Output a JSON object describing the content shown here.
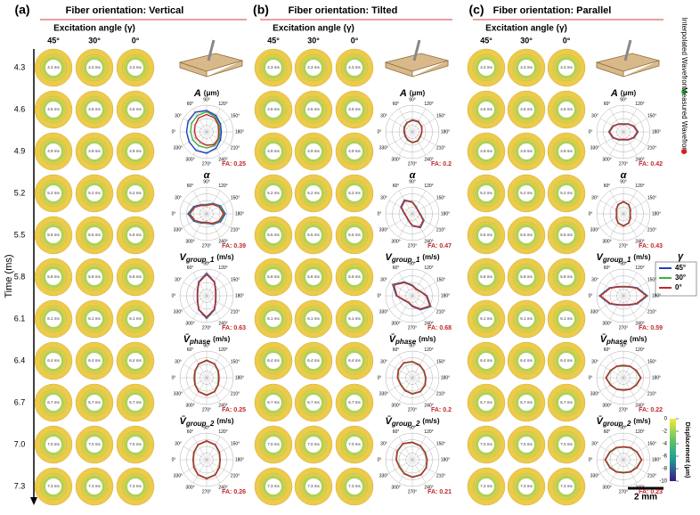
{
  "panels": [
    {
      "tag": "(a)",
      "title": "Fiber orientation: Vertical",
      "plots": [
        {
          "fa": 0.25,
          "series": [
            [
              0.75,
              0.8,
              0.85,
              0.8,
              0.7,
              0.6,
              0.55,
              0.6,
              0.7,
              0.8,
              0.8,
              0.75
            ],
            [
              0.6,
              0.65,
              0.7,
              0.75,
              0.65,
              0.55,
              0.5,
              0.55,
              0.6,
              0.6,
              0.6,
              0.6
            ],
            [
              0.45,
              0.5,
              0.6,
              0.65,
              0.6,
              0.5,
              0.45,
              0.5,
              0.55,
              0.5,
              0.45,
              0.45
            ]
          ]
        },
        {
          "fa": 0.39,
          "series": [
            [
              0.7,
              0.55,
              0.4,
              0.35,
              0.45,
              0.6,
              0.7,
              0.6,
              0.45,
              0.35,
              0.4,
              0.55
            ],
            [
              0.66,
              0.52,
              0.38,
              0.33,
              0.43,
              0.57,
              0.66,
              0.57,
              0.43,
              0.33,
              0.38,
              0.52
            ],
            [
              0.63,
              0.5,
              0.36,
              0.31,
              0.41,
              0.54,
              0.63,
              0.54,
              0.41,
              0.31,
              0.36,
              0.5
            ]
          ]
        },
        {
          "fa": 0.63,
          "series": [
            [
              0.35,
              0.4,
              0.6,
              0.85,
              0.6,
              0.4,
              0.35,
              0.4,
              0.6,
              0.85,
              0.6,
              0.4
            ],
            [
              0.33,
              0.38,
              0.58,
              0.82,
              0.58,
              0.38,
              0.33,
              0.38,
              0.58,
              0.82,
              0.58,
              0.38
            ],
            [
              0.34,
              0.39,
              0.57,
              0.8,
              0.59,
              0.39,
              0.34,
              0.39,
              0.57,
              0.8,
              0.59,
              0.39
            ]
          ]
        },
        {
          "fa": 0.25,
          "series": [
            [
              0.45,
              0.5,
              0.6,
              0.65,
              0.6,
              0.5,
              0.45,
              0.5,
              0.6,
              0.65,
              0.6,
              0.5
            ],
            [
              0.44,
              0.49,
              0.59,
              0.64,
              0.59,
              0.49,
              0.44,
              0.49,
              0.59,
              0.64,
              0.59,
              0.49
            ],
            [
              0.46,
              0.51,
              0.6,
              0.66,
              0.6,
              0.51,
              0.46,
              0.51,
              0.6,
              0.66,
              0.6,
              0.51
            ]
          ]
        },
        {
          "fa": 0.26,
          "series": [
            [
              0.5,
              0.55,
              0.65,
              0.7,
              0.65,
              0.55,
              0.5,
              0.55,
              0.65,
              0.7,
              0.65,
              0.55
            ],
            [
              0.49,
              0.54,
              0.64,
              0.69,
              0.64,
              0.54,
              0.49,
              0.54,
              0.64,
              0.69,
              0.64,
              0.54
            ],
            [
              0.51,
              0.56,
              0.65,
              0.71,
              0.65,
              0.56,
              0.51,
              0.56,
              0.65,
              0.71,
              0.65,
              0.56
            ]
          ]
        }
      ]
    },
    {
      "tag": "(b)",
      "title": "Fiber orientation: Tilted",
      "plots": [
        {
          "fa": 0.2,
          "series": [
            [
              0.3,
              0.35,
              0.4,
              0.45,
              0.45,
              0.4,
              0.35,
              0.35,
              0.4,
              0.4,
              0.35,
              0.3
            ],
            [
              0.32,
              0.36,
              0.41,
              0.44,
              0.43,
              0.4,
              0.36,
              0.36,
              0.4,
              0.41,
              0.36,
              0.32
            ],
            [
              0.31,
              0.34,
              0.39,
              0.43,
              0.44,
              0.41,
              0.36,
              0.34,
              0.39,
              0.39,
              0.34,
              0.31
            ]
          ]
        },
        {
          "fa": 0.47,
          "series": [
            [
              0.3,
              0.5,
              0.6,
              0.45,
              0.3,
              0.25,
              0.3,
              0.5,
              0.6,
              0.45,
              0.3,
              0.25
            ],
            [
              0.29,
              0.48,
              0.58,
              0.44,
              0.29,
              0.24,
              0.29,
              0.48,
              0.58,
              0.44,
              0.29,
              0.24
            ],
            [
              0.28,
              0.47,
              0.57,
              0.43,
              0.28,
              0.24,
              0.28,
              0.47,
              0.57,
              0.43,
              0.28,
              0.24
            ]
          ]
        },
        {
          "fa": 0.68,
          "series": [
            [
              0.6,
              0.85,
              0.6,
              0.4,
              0.3,
              0.35,
              0.55,
              0.8,
              0.6,
              0.4,
              0.3,
              0.35
            ],
            [
              0.58,
              0.82,
              0.58,
              0.38,
              0.29,
              0.34,
              0.53,
              0.78,
              0.58,
              0.38,
              0.29,
              0.34
            ],
            [
              0.57,
              0.8,
              0.57,
              0.37,
              0.28,
              0.33,
              0.52,
              0.76,
              0.57,
              0.37,
              0.28,
              0.33
            ]
          ]
        },
        {
          "fa": 0.2,
          "series": [
            [
              0.55,
              0.6,
              0.65,
              0.6,
              0.55,
              0.5,
              0.5,
              0.55,
              0.6,
              0.6,
              0.55,
              0.5
            ],
            [
              0.54,
              0.59,
              0.64,
              0.59,
              0.54,
              0.49,
              0.49,
              0.54,
              0.59,
              0.59,
              0.54,
              0.49
            ],
            [
              0.56,
              0.61,
              0.65,
              0.61,
              0.56,
              0.51,
              0.51,
              0.56,
              0.6,
              0.61,
              0.56,
              0.51
            ]
          ]
        },
        {
          "fa": 0.21,
          "series": [
            [
              0.6,
              0.65,
              0.7,
              0.65,
              0.6,
              0.55,
              0.55,
              0.6,
              0.65,
              0.65,
              0.6,
              0.55
            ],
            [
              0.59,
              0.64,
              0.69,
              0.64,
              0.59,
              0.54,
              0.54,
              0.59,
              0.64,
              0.64,
              0.59,
              0.54
            ],
            [
              0.61,
              0.66,
              0.7,
              0.66,
              0.61,
              0.56,
              0.56,
              0.61,
              0.65,
              0.66,
              0.61,
              0.56
            ]
          ]
        }
      ]
    },
    {
      "tag": "(c)",
      "title": "Fiber orientation: Parallel",
      "plots": [
        {
          "fa": 0.42,
          "series": [
            [
              0.55,
              0.45,
              0.35,
              0.3,
              0.35,
              0.45,
              0.55,
              0.45,
              0.35,
              0.3,
              0.35,
              0.45
            ],
            [
              0.53,
              0.44,
              0.34,
              0.29,
              0.34,
              0.44,
              0.53,
              0.44,
              0.34,
              0.29,
              0.34,
              0.44
            ],
            [
              0.52,
              0.43,
              0.33,
              0.28,
              0.33,
              0.43,
              0.52,
              0.43,
              0.33,
              0.28,
              0.33,
              0.43
            ]
          ]
        },
        {
          "fa": 0.43,
          "series": [
            [
              0.25,
              0.3,
              0.4,
              0.45,
              0.4,
              0.3,
              0.25,
              0.3,
              0.4,
              0.45,
              0.4,
              0.3
            ],
            [
              0.24,
              0.29,
              0.39,
              0.44,
              0.39,
              0.29,
              0.24,
              0.29,
              0.39,
              0.44,
              0.39,
              0.29
            ],
            [
              0.26,
              0.31,
              0.4,
              0.46,
              0.4,
              0.31,
              0.26,
              0.31,
              0.4,
              0.46,
              0.4,
              0.31
            ]
          ]
        },
        {
          "fa": 0.59,
          "series": [
            [
              0.9,
              0.6,
              0.4,
              0.35,
              0.4,
              0.6,
              0.9,
              0.6,
              0.4,
              0.35,
              0.4,
              0.6
            ],
            [
              0.88,
              0.58,
              0.39,
              0.34,
              0.39,
              0.58,
              0.88,
              0.58,
              0.39,
              0.34,
              0.39,
              0.58
            ],
            [
              0.86,
              0.57,
              0.38,
              0.33,
              0.38,
              0.57,
              0.86,
              0.57,
              0.38,
              0.33,
              0.38,
              0.57
            ]
          ]
        },
        {
          "fa": 0.22,
          "series": [
            [
              0.65,
              0.55,
              0.5,
              0.45,
              0.5,
              0.55,
              0.65,
              0.55,
              0.5,
              0.45,
              0.5,
              0.55
            ],
            [
              0.64,
              0.54,
              0.49,
              0.44,
              0.49,
              0.54,
              0.64,
              0.54,
              0.49,
              0.44,
              0.49,
              0.54
            ],
            [
              0.66,
              0.56,
              0.5,
              0.46,
              0.5,
              0.56,
              0.66,
              0.56,
              0.5,
              0.46,
              0.5,
              0.56
            ]
          ]
        },
        {
          "fa": 0.23,
          "series": [
            [
              0.68,
              0.58,
              0.52,
              0.48,
              0.52,
              0.58,
              0.68,
              0.58,
              0.52,
              0.48,
              0.52,
              0.58
            ],
            [
              0.67,
              0.57,
              0.51,
              0.47,
              0.51,
              0.57,
              0.67,
              0.57,
              0.51,
              0.47,
              0.51,
              0.57
            ],
            [
              0.69,
              0.59,
              0.53,
              0.49,
              0.53,
              0.59,
              0.69,
              0.59,
              0.53,
              0.49,
              0.53,
              0.59
            ]
          ]
        }
      ]
    }
  ],
  "excitation_label": "Excitation angle (γ)",
  "columns": [
    "45°",
    "30°",
    "0°"
  ],
  "time_axis_label": "Time (ms)",
  "times": [
    "4.3",
    "4.6",
    "4.9",
    "5.2",
    "5.5",
    "5.8",
    "6.1",
    "6.4",
    "6.7",
    "7.0",
    "7.3"
  ],
  "frame_labels": [
    "4.3 ms",
    "4.6 ms",
    "4.9 ms",
    "5.2 ms",
    "5.5 ms",
    "5.8 ms",
    "6.1 ms",
    "6.4 ms",
    "6.7 ms",
    "7.0 ms",
    "7.3 ms"
  ],
  "metrics": [
    {
      "symbol": "A",
      "unit": "(μm)"
    },
    {
      "symbol": "α"
    },
    {
      "symbol": "V",
      "sub": "group_1",
      "unit": "(m/s)"
    },
    {
      "symbol": "V̄",
      "sub": "phase",
      "unit": "(m/s)"
    },
    {
      "symbol": "V̄",
      "sub": "group_2",
      "unit": "(m/s)"
    }
  ],
  "polar_angles": [
    "0°",
    "30°",
    "60°",
    "90°",
    "120°",
    "150°",
    "180°",
    "210°",
    "240°",
    "270°",
    "300°",
    "330°"
  ],
  "fa_label": "FA:",
  "gamma_legend": {
    "title": "γ",
    "series": [
      {
        "name": "45°",
        "color": "#1f3fbf"
      },
      {
        "name": "30°",
        "color": "#3cb043"
      },
      {
        "name": "0°",
        "color": "#c0282d"
      }
    ]
  },
  "colorbar": {
    "label": "Displacement (μm)",
    "ticks": [
      0,
      -2,
      -4,
      -6,
      -8,
      -10
    ]
  },
  "markers": [
    {
      "label": "Interpolated Wavefront",
      "color": "#3cd043"
    },
    {
      "label": "Measured Wavefront",
      "color": "#d02020"
    }
  ],
  "scale_label": "2 mm"
}
